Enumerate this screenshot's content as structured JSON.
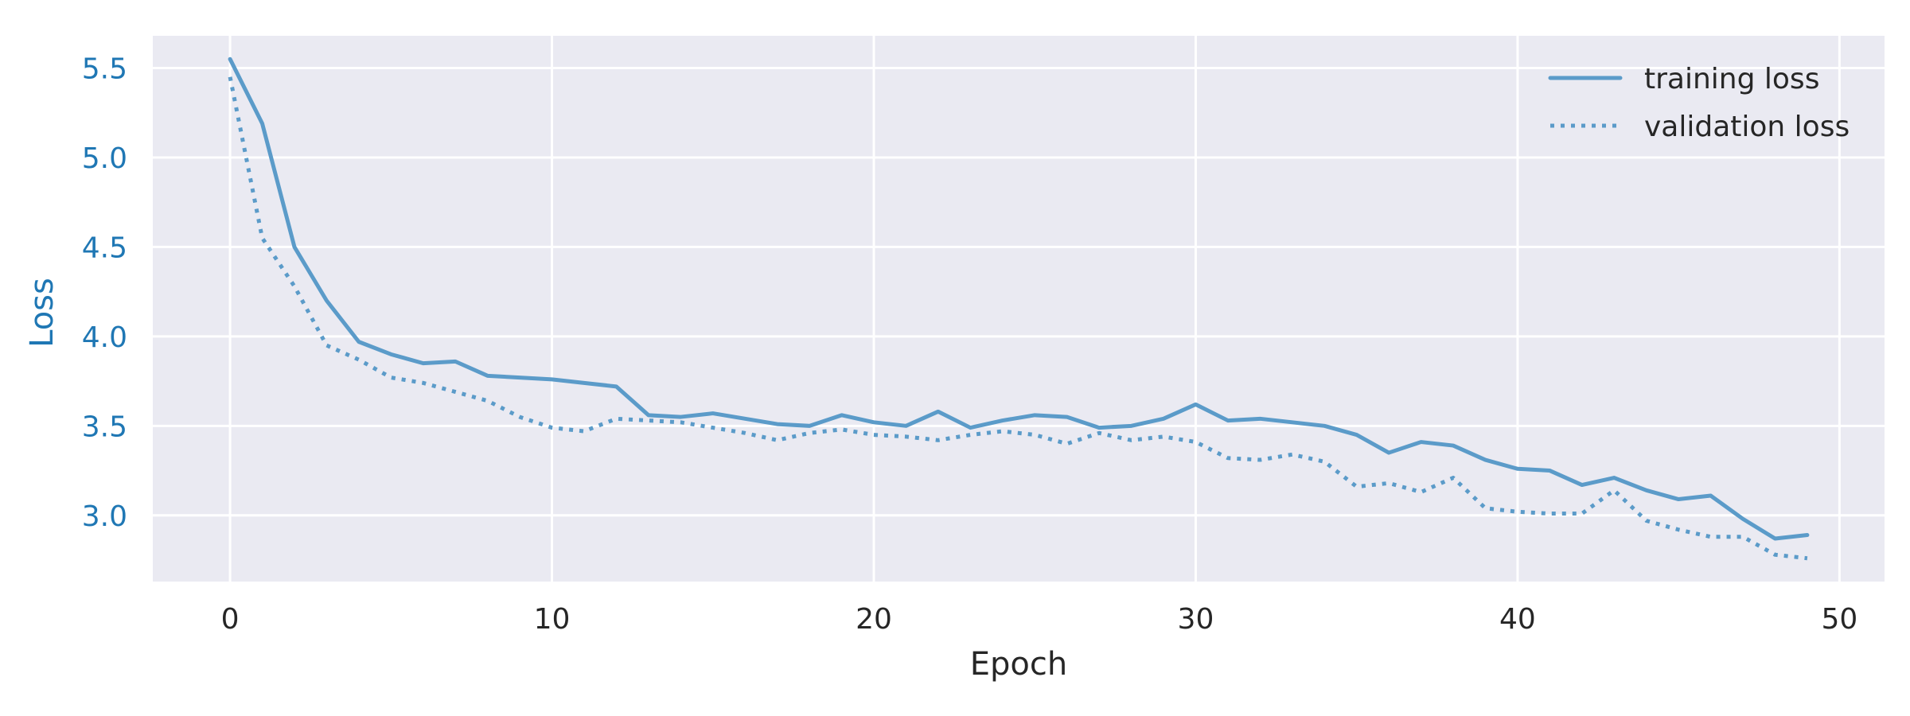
{
  "chart_data": {
    "type": "line",
    "title": "",
    "xlabel": "Epoch",
    "ylabel": "Loss",
    "xlim": [
      -2.4,
      51.4
    ],
    "ylim": [
      2.63,
      5.68
    ],
    "xticks": [
      0,
      10,
      20,
      30,
      40,
      50
    ],
    "xtick_labels": [
      "0",
      "10",
      "20",
      "30",
      "40",
      "50"
    ],
    "yticks": [
      3.0,
      3.5,
      4.0,
      4.5,
      5.0,
      5.5
    ],
    "ytick_labels": [
      "3.0",
      "3.5",
      "4.0",
      "4.5",
      "5.0",
      "5.5"
    ],
    "grid": true,
    "legend_position": "top-right",
    "x": [
      0,
      1,
      2,
      3,
      4,
      5,
      6,
      7,
      8,
      9,
      10,
      11,
      12,
      13,
      14,
      15,
      16,
      17,
      18,
      19,
      20,
      21,
      22,
      23,
      24,
      25,
      26,
      27,
      28,
      29,
      30,
      31,
      32,
      33,
      34,
      35,
      36,
      37,
      38,
      39,
      40,
      41,
      42,
      43,
      44,
      45,
      46,
      47,
      48,
      49
    ],
    "series": [
      {
        "name": "training loss",
        "style": "solid",
        "values": [
          5.55,
          5.19,
          4.5,
          4.2,
          3.97,
          3.9,
          3.85,
          3.86,
          3.78,
          3.77,
          3.76,
          3.74,
          3.72,
          3.56,
          3.55,
          3.57,
          3.54,
          3.51,
          3.5,
          3.56,
          3.52,
          3.5,
          3.58,
          3.49,
          3.53,
          3.56,
          3.55,
          3.49,
          3.5,
          3.54,
          3.62,
          3.53,
          3.54,
          3.52,
          3.5,
          3.45,
          3.35,
          3.41,
          3.39,
          3.31,
          3.26,
          3.25,
          3.17,
          3.21,
          3.14,
          3.09,
          3.11,
          2.98,
          2.87,
          2.89
        ]
      },
      {
        "name": "validation loss",
        "style": "dotted",
        "values": [
          5.45,
          4.55,
          4.28,
          3.95,
          3.87,
          3.77,
          3.74,
          3.69,
          3.64,
          3.55,
          3.49,
          3.47,
          3.54,
          3.53,
          3.52,
          3.49,
          3.46,
          3.42,
          3.46,
          3.48,
          3.45,
          3.44,
          3.42,
          3.45,
          3.47,
          3.45,
          3.4,
          3.46,
          3.42,
          3.44,
          3.41,
          3.32,
          3.31,
          3.34,
          3.3,
          3.16,
          3.18,
          3.13,
          3.21,
          3.04,
          3.02,
          3.01,
          3.01,
          3.14,
          2.97,
          2.92,
          2.88,
          2.88,
          2.78,
          2.76
        ]
      }
    ]
  },
  "colors": {
    "line": "#5b9bc9",
    "ytick": "#1f77b4",
    "xtick": "#262626",
    "plot_bg": "#eaeaf2",
    "grid": "#ffffff"
  }
}
